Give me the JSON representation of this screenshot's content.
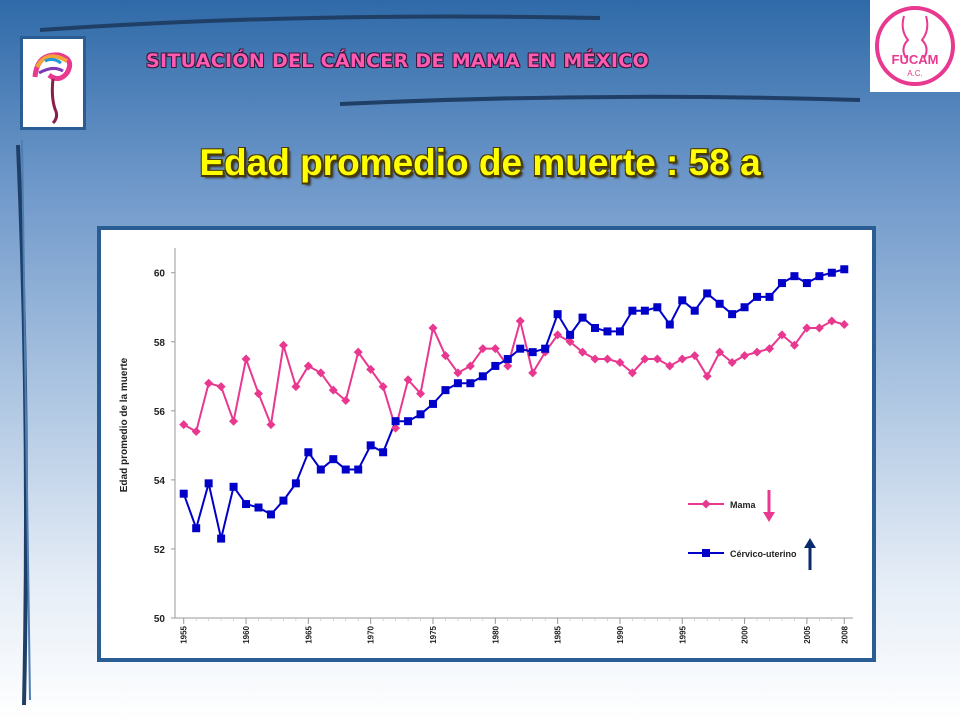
{
  "header": {
    "title": "SITUACIÓN  DEL CÁNCER DE MAMA EN MÉXICO",
    "logo_right_text": "FUCAM",
    "logo_right_sub": "A.C."
  },
  "main_title": "Edad promedio de muerte : 58 a",
  "colors": {
    "mama": "#e8388f",
    "cervico": "#0000c8",
    "title": "#ffff00",
    "header": "#ff5ab2"
  },
  "chart_data": {
    "type": "line",
    "title": "",
    "xlabel": "",
    "ylabel": "Edad promedio de la muerte",
    "ylim": [
      50,
      60.5
    ],
    "yticks": [
      50,
      52,
      54,
      56,
      58,
      60
    ],
    "xticks": [
      1955,
      1960,
      1965,
      1970,
      1975,
      1980,
      1985,
      1990,
      1995,
      2000,
      2005,
      2008
    ],
    "x": [
      1955,
      1956,
      1957,
      1958,
      1959,
      1960,
      1961,
      1962,
      1963,
      1964,
      1965,
      1966,
      1967,
      1968,
      1969,
      1970,
      1971,
      1972,
      1973,
      1974,
      1975,
      1976,
      1977,
      1978,
      1979,
      1980,
      1981,
      1982,
      1983,
      1984,
      1985,
      1986,
      1987,
      1988,
      1989,
      1990,
      1991,
      1992,
      1993,
      1994,
      1995,
      1996,
      1997,
      1998,
      1999,
      2000,
      2001,
      2002,
      2003,
      2004,
      2005,
      2006,
      2007,
      2008
    ],
    "series": [
      {
        "name": "Mama",
        "marker": "diamond",
        "values": [
          55.6,
          55.4,
          56.8,
          56.7,
          55.7,
          57.5,
          56.5,
          55.6,
          57.9,
          56.7,
          57.3,
          57.1,
          56.6,
          56.3,
          57.7,
          57.2,
          56.7,
          55.5,
          56.9,
          56.5,
          58.4,
          57.6,
          57.1,
          57.3,
          57.8,
          57.8,
          57.3,
          58.6,
          57.1,
          57.7,
          58.2,
          58.0,
          57.7,
          57.5,
          57.5,
          57.4,
          57.1,
          57.5,
          57.5,
          57.3,
          57.5,
          57.6,
          57.0,
          57.7,
          57.4,
          57.6,
          57.7,
          57.8,
          58.2,
          57.9,
          58.4,
          58.4,
          58.6,
          58.5
        ]
      },
      {
        "name": "Cérvico-uterino",
        "marker": "square",
        "values": [
          53.6,
          52.6,
          53.9,
          52.3,
          53.8,
          53.3,
          53.2,
          53.0,
          53.4,
          53.9,
          54.8,
          54.3,
          54.6,
          54.3,
          54.3,
          55.0,
          54.8,
          55.7,
          55.7,
          55.9,
          56.2,
          56.6,
          56.8,
          56.8,
          57.0,
          57.3,
          57.5,
          57.8,
          57.7,
          57.8,
          58.8,
          58.2,
          58.7,
          58.4,
          58.3,
          58.3,
          58.9,
          58.9,
          59.0,
          58.5,
          59.2,
          58.9,
          59.4,
          59.1,
          58.8,
          59.0,
          59.3,
          59.3,
          59.7,
          59.9,
          59.7,
          59.9,
          60.0,
          60.1
        ]
      }
    ],
    "legend": {
      "position": "right",
      "items": [
        "Mama",
        "Cérvico-uterino"
      ]
    },
    "annotations": [
      {
        "series": "Mama",
        "arrow": "down"
      },
      {
        "series": "Cérvico-uterino",
        "arrow": "up"
      }
    ],
    "grid": false
  }
}
